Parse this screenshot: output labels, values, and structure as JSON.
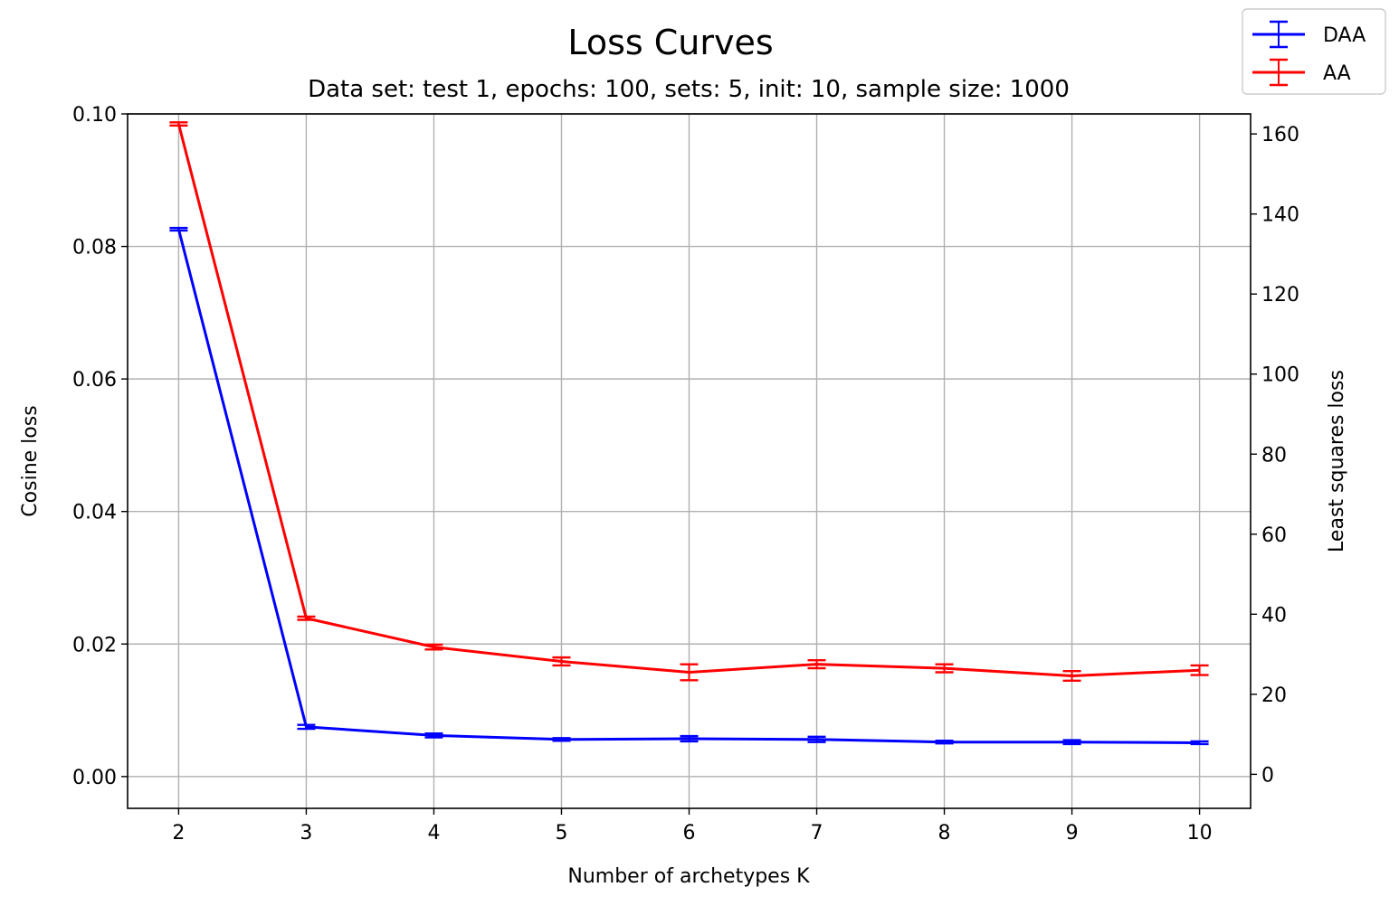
{
  "chart_data": {
    "type": "line",
    "title": "Loss Curves",
    "subtitle": "Data set: test 1, epochs: 100, sets: 5, init: 10, sample size: 1000",
    "xlabel": "Number of archetypes K",
    "ylabel_left": "Cosine loss",
    "ylabel_right": "Least squares loss",
    "x": [
      2,
      3,
      4,
      5,
      6,
      7,
      8,
      9,
      10
    ],
    "x_ticks": [
      "2",
      "3",
      "4",
      "5",
      "6",
      "7",
      "8",
      "9",
      "10"
    ],
    "xlim": [
      1.6,
      10.4
    ],
    "ylim_left": [
      -0.0048,
      0.1
    ],
    "ylim_right": [
      -8.5,
      165
    ],
    "yticks_left": [
      "0.00",
      "0.02",
      "0.04",
      "0.06",
      "0.08",
      "0.10"
    ],
    "yticks_right": [
      "0",
      "20",
      "40",
      "60",
      "80",
      "100",
      "120",
      "140",
      "160"
    ],
    "grid": true,
    "legend_position": "top-right",
    "series": [
      {
        "name": "DAA",
        "color": "#0000ff",
        "axis": "left",
        "values": [
          0.0826,
          0.0075,
          0.0062,
          0.0056,
          0.0057,
          0.0056,
          0.0052,
          0.0052,
          0.0051
        ],
        "errors": [
          0.0002,
          0.0003,
          0.0003,
          0.0002,
          0.0004,
          0.0004,
          0.0002,
          0.0003,
          0.0002
        ]
      },
      {
        "name": "AA",
        "color": "#ff0000",
        "axis": "right",
        "values": [
          162.5,
          39.0,
          31.8,
          28.2,
          25.5,
          27.5,
          26.5,
          24.6,
          26.0
        ],
        "errors": [
          0.4,
          0.4,
          0.6,
          1.0,
          2.0,
          1.0,
          1.0,
          1.2,
          1.2
        ]
      }
    ]
  }
}
